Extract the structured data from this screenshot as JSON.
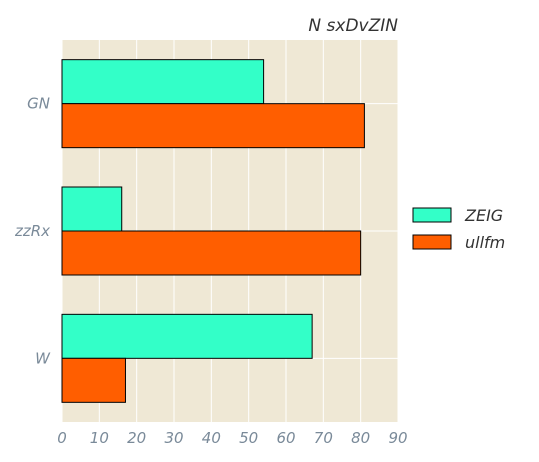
{
  "chart_data": {
    "type": "bar",
    "orientation": "horizontal",
    "title": "N sxDvZIN",
    "xlabel": "",
    "ylabel": "",
    "categories": [
      "GN",
      "zzRx",
      "W"
    ],
    "series": [
      {
        "name": "ZEIG",
        "color": "#33ffc8",
        "values": [
          54,
          16,
          67
        ]
      },
      {
        "name": "ullfm",
        "color": "#ff5e00",
        "values": [
          81,
          80,
          17
        ]
      }
    ],
    "xlim": [
      0,
      90
    ],
    "xticks": [
      0,
      10,
      20,
      30,
      40,
      50,
      60,
      70,
      80,
      90
    ],
    "grid": true,
    "legend_position": "right",
    "background": "#efe8d5"
  }
}
